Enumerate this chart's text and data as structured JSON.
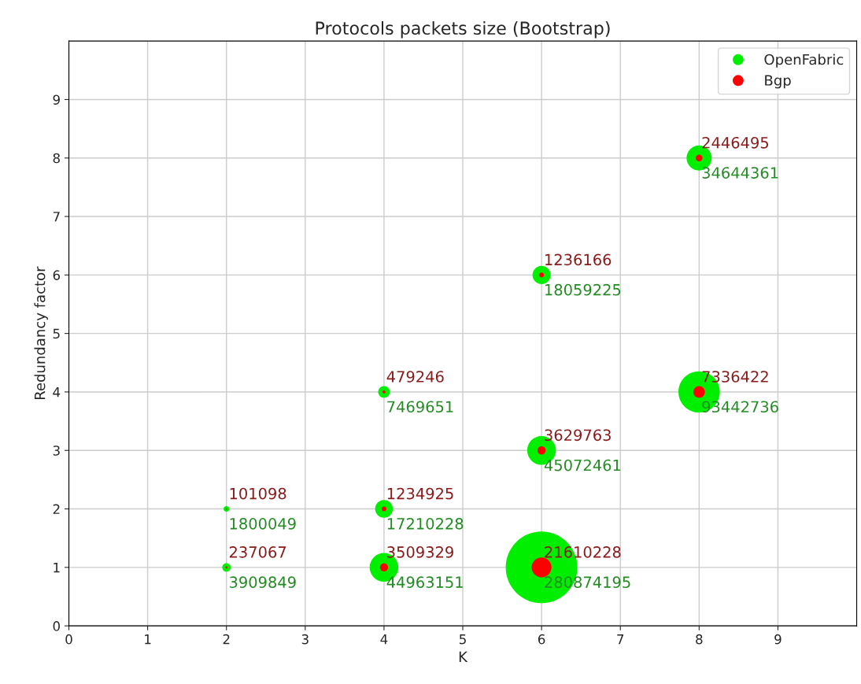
{
  "chart_data": {
    "type": "bubble",
    "title": "Protocols packets size (Bootstrap)",
    "xlabel": "K",
    "ylabel": "Redundancy factor",
    "xlim": [
      0,
      10
    ],
    "xticks": [
      0,
      1,
      2,
      3,
      4,
      5,
      6,
      7,
      8,
      9
    ],
    "ylim": [
      0,
      10
    ],
    "yticks": [
      0,
      1,
      2,
      3,
      4,
      5,
      6,
      7,
      8,
      9
    ],
    "grid": true,
    "legend": "top right",
    "marker": "circle",
    "series": [
      {
        "name": "OpenFabric",
        "color": "#00ee00",
        "x": [
          2,
          2,
          4,
          4,
          4,
          6,
          6,
          6,
          8,
          8
        ],
        "values": [
          1,
          2,
          1,
          2,
          4,
          1,
          3,
          6,
          4,
          8
        ],
        "sizes": [
          3909849,
          1800049,
          44963151,
          17210228,
          7469651,
          280874195,
          45072461,
          18059225,
          93442736,
          34644361
        ],
        "value_labels": [
          "3909849",
          "1800049",
          "44963151",
          "17210228",
          "7469651",
          "280874195",
          "45072461",
          "18059225",
          "93442736",
          "34644361"
        ]
      },
      {
        "name": "Bgp",
        "color": "#ff0000",
        "x": [
          2,
          2,
          4,
          4,
          4,
          6,
          6,
          6,
          8,
          8
        ],
        "values": [
          1,
          2,
          1,
          2,
          4,
          1,
          3,
          6,
          4,
          8
        ],
        "sizes": [
          237067,
          101098,
          3509329,
          1234925,
          479246,
          21610228,
          3629763,
          1236166,
          7336422,
          2446495
        ],
        "value_labels": [
          "237067",
          "101098",
          "3509329",
          "1234925",
          "479246",
          "21610228",
          "3629763",
          "1236166",
          "7336422",
          "2446495"
        ]
      }
    ]
  }
}
